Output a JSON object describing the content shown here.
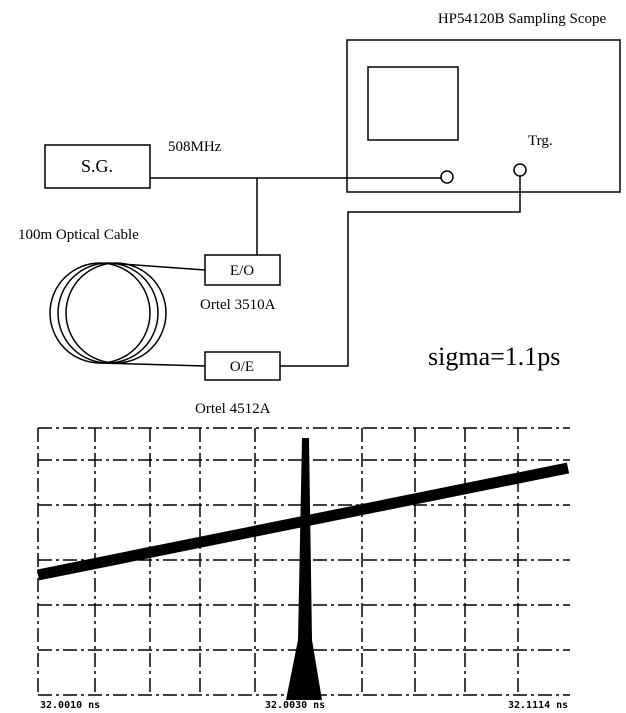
{
  "scope": {
    "title": "HP54120B Sampling Scope",
    "trigger": "Trg."
  },
  "generator": {
    "label": "S.G.",
    "frequency": "508MHz"
  },
  "cable": {
    "label": "100m Optical Cable"
  },
  "transmitter": {
    "label": "E/O",
    "model": "Ortel 3510A"
  },
  "receiver": {
    "label": "O/E",
    "model": "Ortel 4512A"
  },
  "result": "sigma=1.1ps",
  "trace": {
    "axis_labels": [
      "32.0010 ns",
      "32.0030 ns",
      "32.1114 ns"
    ]
  }
}
